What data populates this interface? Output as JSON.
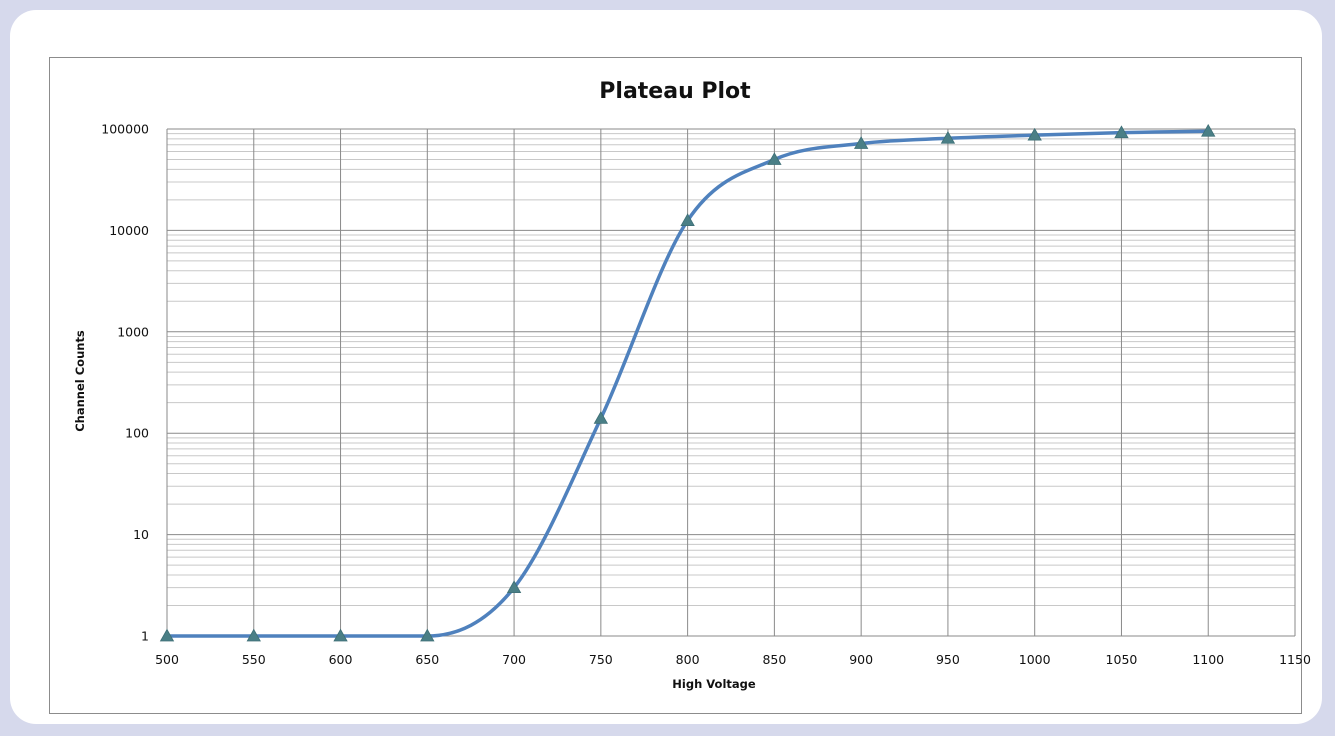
{
  "chart_data": {
    "type": "line",
    "title": "Plateau Plot",
    "xlabel": "High Voltage",
    "ylabel": "Channel Counts",
    "x_ticks": [
      "500",
      "550",
      "600",
      "650",
      "700",
      "750",
      "800",
      "850",
      "900",
      "950",
      "1000",
      "1050",
      "1100",
      "1150"
    ],
    "y_ticks": [
      "1",
      "10",
      "100",
      "1000",
      "10000",
      "100000"
    ],
    "xlim": [
      500,
      1150
    ],
    "ylim": [
      1,
      100000
    ],
    "y_scale": "log",
    "grid": true,
    "legend": "none",
    "series": [
      {
        "marker": "triangle",
        "color": "#4f81bd",
        "marker_color": "#4a7f86",
        "x": [
          500,
          550,
          600,
          650,
          700,
          750,
          800,
          850,
          900,
          950,
          1000,
          1050,
          1100
        ],
        "y": [
          1,
          1,
          1,
          1,
          3,
          140,
          12500,
          50000,
          72000,
          81000,
          87000,
          92000,
          95000
        ]
      }
    ]
  }
}
